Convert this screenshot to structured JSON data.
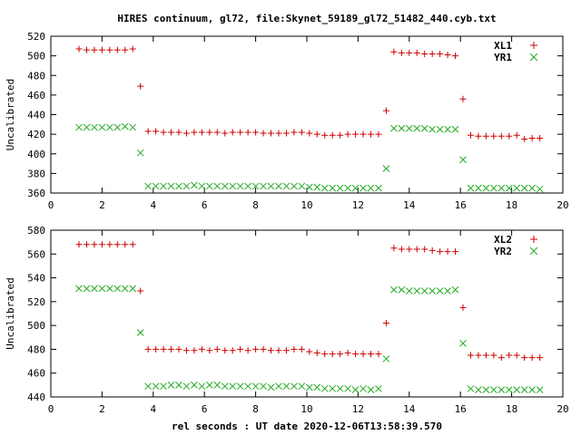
{
  "chart_data": {
    "title": "HIRES continuum, gl72, file:Skynet_59189_gl72_51482_440.cyb.txt",
    "xlabel": "rel seconds : UT date 2020-12-06T13:58:39.570",
    "xlim": [
      0,
      20
    ],
    "xticks": [
      0,
      2,
      4,
      6,
      8,
      10,
      12,
      14,
      16,
      18,
      20
    ],
    "colors": {
      "red": "#cc0000",
      "green": "#22aa22"
    },
    "panels": [
      {
        "type": "scatter",
        "ylabel": "Uncalibrated",
        "ylim": [
          360,
          520
        ],
        "yticks": [
          360,
          380,
          400,
          420,
          440,
          460,
          480,
          500,
          520
        ],
        "legend_position": "top-right",
        "series": [
          {
            "name": "XL1",
            "marker": "plus",
            "color": "#cc0000",
            "x": [
              1.1,
              1.4,
              1.7,
              2.0,
              2.3,
              2.6,
              2.9,
              3.2,
              3.5,
              3.8,
              4.1,
              4.4,
              4.7,
              5.0,
              5.3,
              5.6,
              5.9,
              6.2,
              6.5,
              6.8,
              7.1,
              7.4,
              7.7,
              8.0,
              8.3,
              8.6,
              8.9,
              9.2,
              9.5,
              9.8,
              10.1,
              10.4,
              10.7,
              11.0,
              11.3,
              11.6,
              11.9,
              12.2,
              12.5,
              12.8,
              13.1,
              13.4,
              13.7,
              14.0,
              14.3,
              14.6,
              14.9,
              15.2,
              15.5,
              15.8,
              16.1,
              16.4,
              16.7,
              17.0,
              17.3,
              17.6,
              17.9,
              18.2,
              18.5,
              18.8,
              19.1
            ],
            "y": [
              507,
              506,
              506,
              506,
              506,
              506,
              506,
              507,
              469,
              423,
              423,
              422,
              422,
              422,
              421,
              422,
              422,
              422,
              422,
              421,
              422,
              422,
              422,
              422,
              421,
              421,
              421,
              421,
              422,
              422,
              421,
              420,
              419,
              419,
              419,
              420,
              420,
              420,
              420,
              420,
              444,
              504,
              503,
              503,
              503,
              502,
              502,
              502,
              501,
              500,
              456,
              419,
              418,
              418,
              418,
              418,
              418,
              419,
              415,
              416,
              416
            ]
          },
          {
            "name": "YR1",
            "marker": "cross",
            "color": "#22aa22",
            "x": [
              1.1,
              1.4,
              1.7,
              2.0,
              2.3,
              2.6,
              2.9,
              3.2,
              3.5,
              3.8,
              4.1,
              4.4,
              4.7,
              5.0,
              5.3,
              5.6,
              5.9,
              6.2,
              6.5,
              6.8,
              7.1,
              7.4,
              7.7,
              8.0,
              8.3,
              8.6,
              8.9,
              9.2,
              9.5,
              9.8,
              10.1,
              10.4,
              10.7,
              11.0,
              11.3,
              11.6,
              11.9,
              12.2,
              12.5,
              12.8,
              13.1,
              13.4,
              13.7,
              14.0,
              14.3,
              14.6,
              14.9,
              15.2,
              15.5,
              15.8,
              16.1,
              16.4,
              16.7,
              17.0,
              17.3,
              17.6,
              17.9,
              18.2,
              18.5,
              18.8,
              19.1
            ],
            "y": [
              427,
              427,
              427,
              427,
              427,
              427,
              428,
              427,
              401,
              367,
              367,
              367,
              367,
              367,
              367,
              368,
              367,
              367,
              367,
              367,
              367,
              367,
              367,
              367,
              367,
              367,
              367,
              367,
              367,
              367,
              366,
              366,
              365,
              365,
              365,
              365,
              365,
              365,
              365,
              365,
              385,
              426,
              426,
              426,
              426,
              426,
              425,
              425,
              425,
              425,
              394,
              365,
              365,
              365,
              365,
              365,
              365,
              365,
              365,
              365,
              364
            ]
          }
        ]
      },
      {
        "type": "scatter",
        "ylabel": "Uncalibrated",
        "ylim": [
          440,
          580
        ],
        "yticks": [
          440,
          460,
          480,
          500,
          520,
          540,
          560,
          580
        ],
        "legend_position": "top-right",
        "series": [
          {
            "name": "XL2",
            "marker": "plus",
            "color": "#cc0000",
            "x": [
              1.1,
              1.4,
              1.7,
              2.0,
              2.3,
              2.6,
              2.9,
              3.2,
              3.5,
              3.8,
              4.1,
              4.4,
              4.7,
              5.0,
              5.3,
              5.6,
              5.9,
              6.2,
              6.5,
              6.8,
              7.1,
              7.4,
              7.7,
              8.0,
              8.3,
              8.6,
              8.9,
              9.2,
              9.5,
              9.8,
              10.1,
              10.4,
              10.7,
              11.0,
              11.3,
              11.6,
              11.9,
              12.2,
              12.5,
              12.8,
              13.1,
              13.4,
              13.7,
              14.0,
              14.3,
              14.6,
              14.9,
              15.2,
              15.5,
              15.8,
              16.1,
              16.4,
              16.7,
              17.0,
              17.3,
              17.6,
              17.9,
              18.2,
              18.5,
              18.8,
              19.1
            ],
            "y": [
              568,
              568,
              568,
              568,
              568,
              568,
              568,
              568,
              529,
              480,
              480,
              480,
              480,
              480,
              479,
              479,
              480,
              479,
              480,
              479,
              479,
              480,
              479,
              480,
              480,
              479,
              479,
              479,
              480,
              480,
              478,
              477,
              476,
              476,
              476,
              477,
              476,
              476,
              476,
              476,
              502,
              565,
              564,
              564,
              564,
              564,
              563,
              562,
              562,
              562,
              515,
              475,
              475,
              475,
              475,
              473,
              475,
              475,
              473,
              473,
              473
            ]
          },
          {
            "name": "YR2",
            "marker": "cross",
            "color": "#22aa22",
            "x": [
              1.1,
              1.4,
              1.7,
              2.0,
              2.3,
              2.6,
              2.9,
              3.2,
              3.5,
              3.8,
              4.1,
              4.4,
              4.7,
              5.0,
              5.3,
              5.6,
              5.9,
              6.2,
              6.5,
              6.8,
              7.1,
              7.4,
              7.7,
              8.0,
              8.3,
              8.6,
              8.9,
              9.2,
              9.5,
              9.8,
              10.1,
              10.4,
              10.7,
              11.0,
              11.3,
              11.6,
              11.9,
              12.2,
              12.5,
              12.8,
              13.1,
              13.4,
              13.7,
              14.0,
              14.3,
              14.6,
              14.9,
              15.2,
              15.5,
              15.8,
              16.1,
              16.4,
              16.7,
              17.0,
              17.3,
              17.6,
              17.9,
              18.2,
              18.5,
              18.8,
              19.1
            ],
            "y": [
              531,
              531,
              531,
              531,
              531,
              531,
              531,
              531,
              494,
              449,
              449,
              449,
              450,
              450,
              449,
              450,
              449,
              450,
              450,
              449,
              449,
              449,
              449,
              449,
              449,
              448,
              449,
              449,
              449,
              449,
              448,
              448,
              447,
              447,
              447,
              447,
              446,
              447,
              446,
              447,
              472,
              530,
              530,
              529,
              529,
              529,
              529,
              529,
              529,
              530,
              485,
              447,
              446,
              446,
              446,
              446,
              446,
              446,
              446,
              446,
              446
            ]
          }
        ]
      }
    ]
  }
}
